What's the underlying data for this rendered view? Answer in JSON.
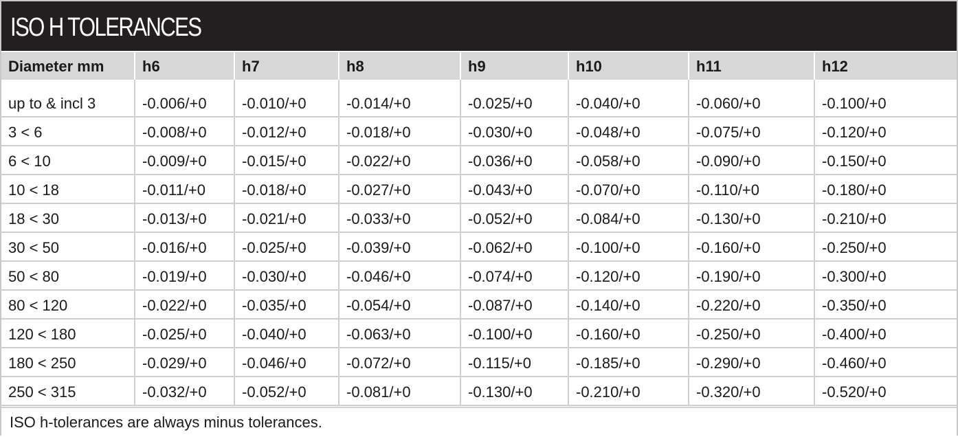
{
  "title": "ISO H TOLERANCES",
  "table": {
    "headers": [
      "Diameter mm",
      "h6",
      "h7",
      "h8",
      "h9",
      "h10",
      "h11",
      "h12"
    ],
    "rows": [
      [
        "up to & incl 3",
        "-0.006/+0",
        "-0.010/+0",
        "-0.014/+0",
        "-0.025/+0",
        "-0.040/+0",
        "-0.060/+0",
        "-0.100/+0"
      ],
      [
        "3 < 6",
        "-0.008/+0",
        "-0.012/+0",
        "-0.018/+0",
        "-0.030/+0",
        "-0.048/+0",
        "-0.075/+0",
        "-0.120/+0"
      ],
      [
        "6 < 10",
        "-0.009/+0",
        "-0.015/+0",
        "-0.022/+0",
        "-0.036/+0",
        "-0.058/+0",
        "-0.090/+0",
        "-0.150/+0"
      ],
      [
        "10 < 18",
        "-0.011/+0",
        "-0.018/+0",
        "-0.027/+0",
        "-0.043/+0",
        "-0.070/+0",
        "-0.110/+0",
        "-0.180/+0"
      ],
      [
        "18 < 30",
        "-0.013/+0",
        "-0.021/+0",
        "-0.033/+0",
        "-0.052/+0",
        "-0.084/+0",
        "-0.130/+0",
        "-0.210/+0"
      ],
      [
        "30 < 50",
        "-0.016/+0",
        "-0.025/+0",
        "-0.039/+0",
        "-0.062/+0",
        "-0.100/+0",
        "-0.160/+0",
        "-0.250/+0"
      ],
      [
        "50 < 80",
        "-0.019/+0",
        "-0.030/+0",
        "-0.046/+0",
        "-0.074/+0",
        "-0.120/+0",
        "-0.190/+0",
        "-0.300/+0"
      ],
      [
        "80 < 120",
        "-0.022/+0",
        "-0.035/+0",
        "-0.054/+0",
        "-0.087/+0",
        "-0.140/+0",
        "-0.220/+0",
        "-0.350/+0"
      ],
      [
        "120 < 180",
        "-0.025/+0",
        "-0.040/+0",
        "-0.063/+0",
        "-0.100/+0",
        "-0.160/+0",
        "-0.250/+0",
        "-0.400/+0"
      ],
      [
        "180 < 250",
        "-0.029/+0",
        "-0.046/+0",
        "-0.072/+0",
        "-0.115/+0",
        "-0.185/+0",
        "-0.290/+0",
        "-0.460/+0"
      ],
      [
        "250 < 315",
        "-0.032/+0",
        "-0.052/+0",
        "-0.081/+0",
        "-0.130/+0",
        "-0.210/+0",
        "-0.320/+0",
        "-0.520/+0"
      ]
    ]
  },
  "footnote": "ISO h-tolerances are always minus tolerances.",
  "colors": {
    "title_background": "#231f20",
    "title_text": "#ffffff",
    "header_background": "#d7d7d7",
    "grid_lines": "#cfcfcf"
  }
}
